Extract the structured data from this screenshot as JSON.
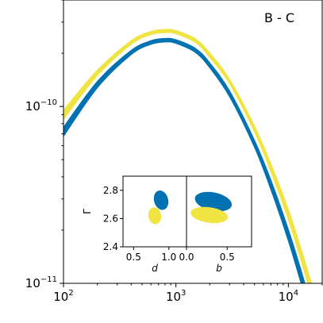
{
  "chart_data": {
    "type": "line",
    "title": "",
    "annotation": "B - C",
    "xlabel": "",
    "ylabel": "",
    "xscale": "log",
    "yscale": "log",
    "xlim": [
      100,
      20000
    ],
    "ylim": [
      1e-11,
      4e-10
    ],
    "xticks": [
      100,
      1000,
      10000
    ],
    "xtick_labels": [
      {
        "base": "10",
        "exp": "2"
      },
      {
        "base": "10",
        "exp": "3"
      },
      {
        "base": "10",
        "exp": "4"
      }
    ],
    "yticks": [
      1e-11,
      1e-10
    ],
    "ytick_labels": [
      {
        "base": "10",
        "exp": "−11"
      },
      {
        "base": "10",
        "exp": "−10"
      }
    ],
    "grid": false,
    "series": [
      {
        "color": "#f0e442",
        "band": true,
        "x": [
          100,
          200,
          400,
          600,
          800,
          1000,
          1500,
          2000,
          3000,
          5000,
          7000,
          10000,
          13000,
          16000
        ],
        "y_low": [
          8.5e-11,
          1.5e-10,
          2.25e-10,
          2.55e-10,
          2.62e-10,
          2.58e-10,
          2.3e-10,
          1.9e-10,
          1.35e-10,
          7.2e-11,
          4.3e-11,
          2.3e-11,
          1.35e-11,
          8.5e-12
        ],
        "y_high": [
          9.5e-11,
          1.6e-10,
          2.35e-10,
          2.65e-10,
          2.72e-10,
          2.68e-10,
          2.4e-10,
          2e-10,
          1.42e-10,
          7.7e-11,
          4.7e-11,
          2.6e-11,
          1.55e-11,
          1e-11
        ]
      },
      {
        "color": "#0072b2",
        "band": true,
        "x": [
          100,
          200,
          400,
          600,
          800,
          1000,
          1500,
          2000,
          3000,
          5000,
          7000,
          10000,
          13000,
          16000
        ],
        "y_low": [
          6.8e-11,
          1.28e-10,
          1.97e-10,
          2.25e-10,
          2.32e-10,
          2.28e-10,
          2.02e-10,
          1.66e-10,
          1.14e-10,
          5.9e-11,
          3.4e-11,
          1.75e-11,
          1e-11,
          6.2e-12
        ],
        "y_high": [
          7.6e-11,
          1.38e-10,
          2.07e-10,
          2.35e-10,
          2.42e-10,
          2.38e-10,
          2.12e-10,
          1.76e-10,
          1.22e-10,
          6.4e-11,
          3.8e-11,
          2e-11,
          1.17e-11,
          7.4e-12
        ]
      }
    ],
    "inset": {
      "type": "scatter",
      "ylabel": "Γ",
      "ylim": [
        2.4,
        2.9
      ],
      "yticks": [
        {
          "value": 2.4,
          "label": "2.4"
        },
        {
          "value": 2.6,
          "label": "2.6"
        },
        {
          "value": 2.8,
          "label": "2.8"
        }
      ],
      "panels": [
        {
          "xlabel": "d",
          "xlim": [
            0.35,
            1.25
          ],
          "xticks": [
            {
              "value": 0.5,
              "label": "0.5"
            },
            {
              "value": 1.0,
              "label": "1.0"
            }
          ],
          "ellipses": [
            {
              "color": "#0072b2",
              "cx": 0.89,
              "cy": 2.73,
              "rx": 0.1,
              "ry": 0.07,
              "angle": -15
            },
            {
              "color": "#f0e442",
              "cx": 0.8,
              "cy": 2.62,
              "rx": 0.09,
              "ry": 0.06,
              "angle": -10
            }
          ]
        },
        {
          "xlabel": "b",
          "xlim": [
            0.0,
            0.8
          ],
          "xticks": [
            {
              "value": 0.0,
              "label": "0.0"
            },
            {
              "value": 0.5,
              "label": "0.5"
            }
          ],
          "ellipses": [
            {
              "color": "#0072b2",
              "cx": 0.33,
              "cy": 2.72,
              "rx": 0.23,
              "ry": 0.065,
              "angle": 12
            },
            {
              "color": "#f0e442",
              "cx": 0.28,
              "cy": 2.625,
              "rx": 0.23,
              "ry": 0.055,
              "angle": 8
            }
          ]
        }
      ]
    }
  }
}
